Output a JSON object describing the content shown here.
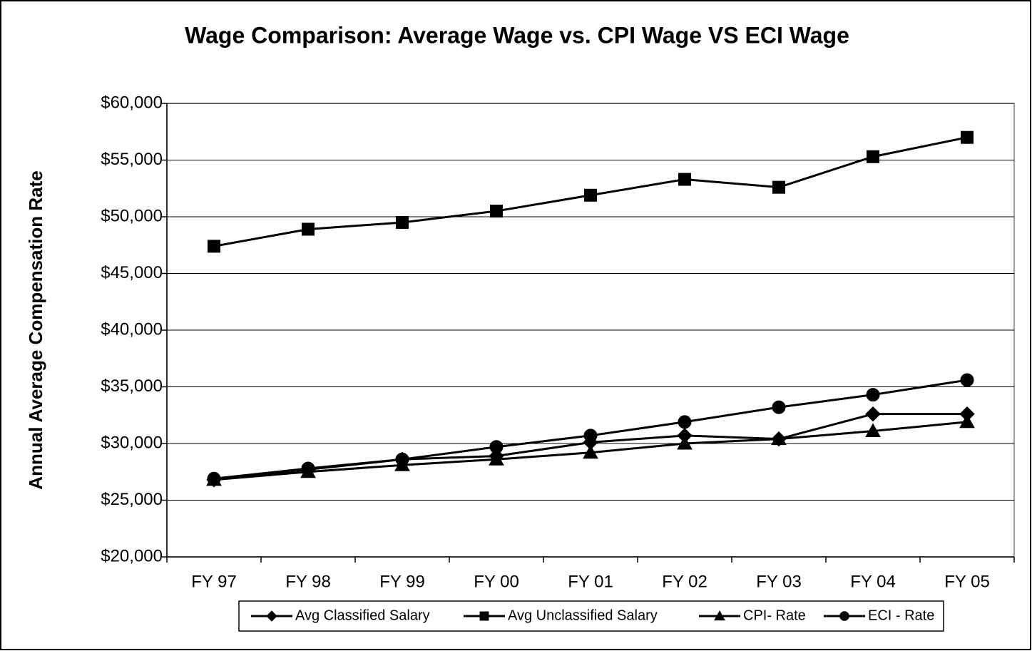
{
  "chart_data": {
    "type": "line",
    "title": "Wage Comparison: Average Wage vs. CPI Wage VS ECI Wage",
    "y_label": "Annual Average Compensation Rate",
    "categories": [
      "FY 97",
      "FY 98",
      "FY 99",
      "FY 00",
      "FY 01",
      "FY 02",
      "FY 03",
      "FY 04",
      "FY 05"
    ],
    "series": [
      {
        "name": "Avg Classified Salary",
        "color": "#000000",
        "marker": "diamond",
        "values": [
          26800,
          27700,
          28600,
          28900,
          30100,
          30700,
          30400,
          32600,
          32600
        ]
      },
      {
        "name": "Avg Unclassified Salary",
        "color": "#000000",
        "marker": "square",
        "values": [
          47400,
          48900,
          49500,
          50500,
          51900,
          53300,
          52600,
          55300,
          57000
        ]
      },
      {
        "name": "CPI- Rate",
        "color": "#000000",
        "marker": "triangle",
        "values": [
          26800,
          27500,
          28100,
          28600,
          29200,
          30000,
          30400,
          31100,
          31900
        ]
      },
      {
        "name": "ECI - Rate",
        "color": "#000000",
        "marker": "circle",
        "values": [
          26900,
          27800,
          28600,
          29700,
          30700,
          31900,
          33200,
          34300,
          35600
        ]
      }
    ],
    "ylim": [
      20000,
      60000
    ],
    "yticks": [
      {
        "value": 20000,
        "label": "$20,000"
      },
      {
        "value": 25000,
        "label": "$25,000"
      },
      {
        "value": 30000,
        "label": "$30,000"
      },
      {
        "value": 35000,
        "label": "$35,000"
      },
      {
        "value": 40000,
        "label": "$40,000"
      },
      {
        "value": 45000,
        "label": "$45,000"
      },
      {
        "value": 50000,
        "label": "$50,000"
      },
      {
        "value": 55000,
        "label": "$55,000"
      },
      {
        "value": 60000,
        "label": "$60,000"
      }
    ],
    "grid": true,
    "legend": "bottom"
  }
}
